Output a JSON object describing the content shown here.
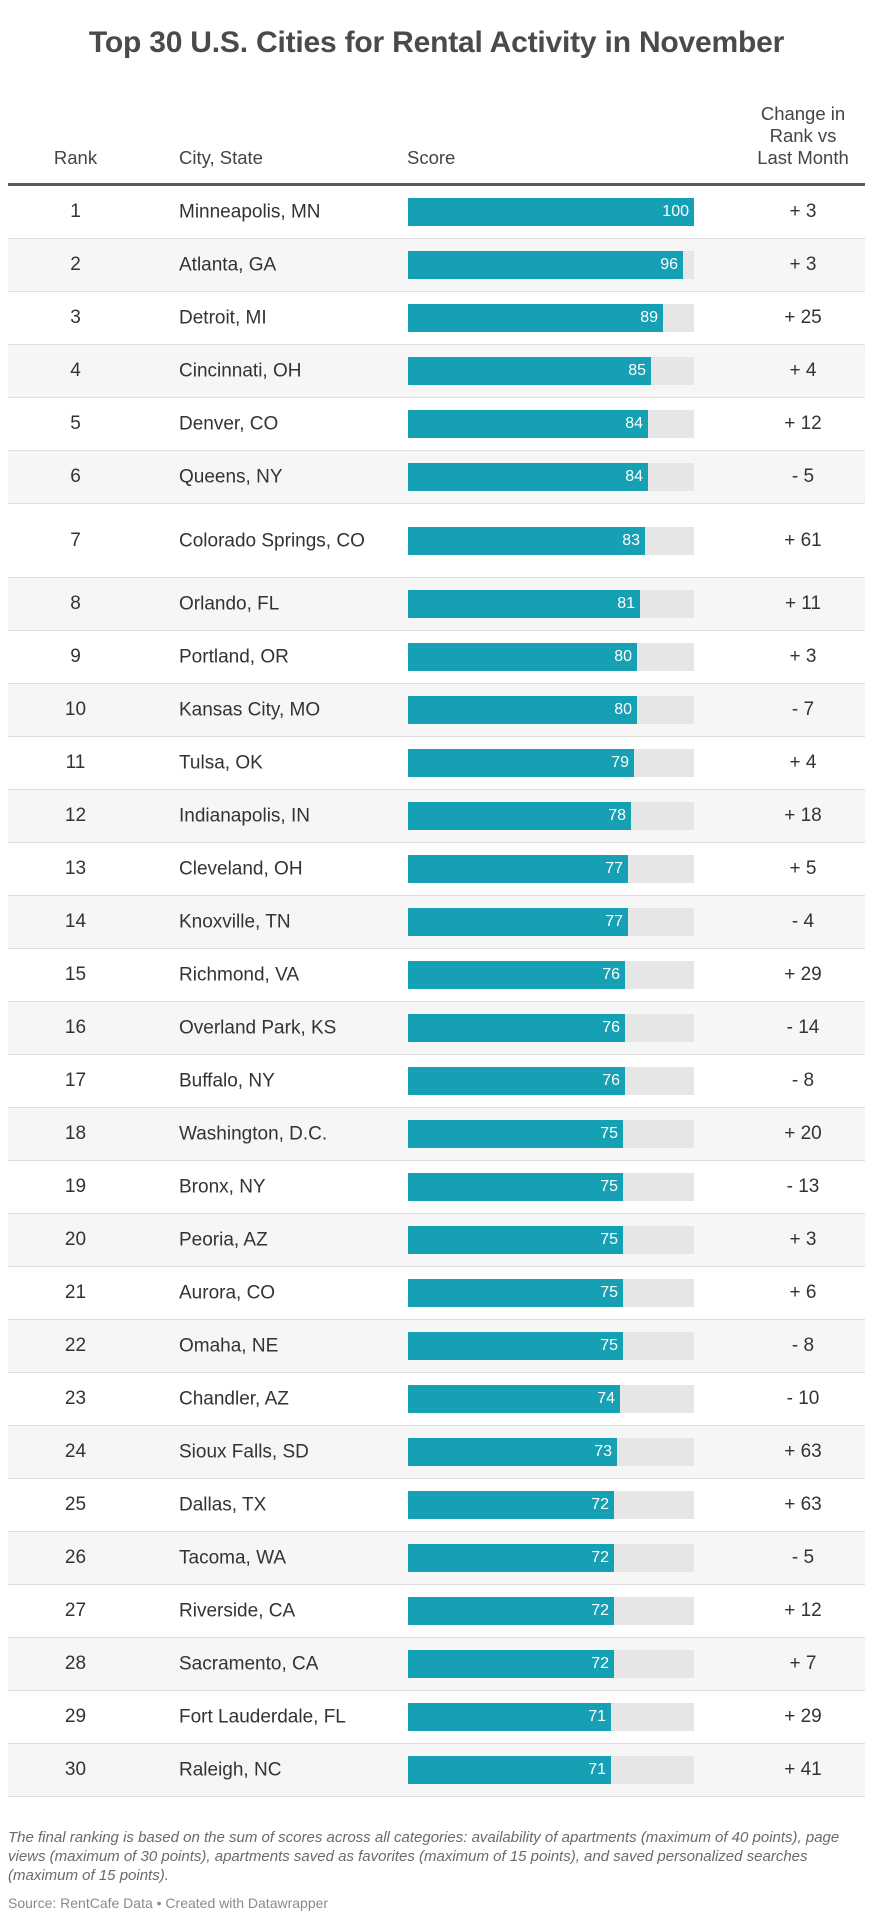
{
  "title": "Top 30 U.S. Cities for Rental Activity in November",
  "headers": {
    "rank": "Rank",
    "city": "City, State",
    "score": "Score",
    "change_line1": "Change in",
    "change_line2": "Rank vs",
    "change_line3": "Last Month"
  },
  "chart_data": {
    "type": "table",
    "title": "Top 30 U.S. Cities for Rental Activity in November",
    "columns": [
      "Rank",
      "City, State",
      "Score",
      "Change in Rank vs Last Month"
    ],
    "score_max": 100,
    "rows": [
      {
        "rank": "1",
        "city": "Minneapolis, MN",
        "score": 100,
        "change": "+ 3"
      },
      {
        "rank": "2",
        "city": "Atlanta, GA",
        "score": 96,
        "change": "+ 3"
      },
      {
        "rank": "3",
        "city": "Detroit, MI",
        "score": 89,
        "change": "+ 25"
      },
      {
        "rank": "4",
        "city": "Cincinnati, OH",
        "score": 85,
        "change": "+ 4"
      },
      {
        "rank": "5",
        "city": "Denver, CO",
        "score": 84,
        "change": "+ 12"
      },
      {
        "rank": "6",
        "city": "Queens, NY",
        "score": 84,
        "change": "- 5"
      },
      {
        "rank": "7",
        "city": "Colorado Springs, CO",
        "score": 83,
        "change": "+ 61"
      },
      {
        "rank": "8",
        "city": "Orlando, FL",
        "score": 81,
        "change": "+ 11"
      },
      {
        "rank": "9",
        "city": "Portland, OR",
        "score": 80,
        "change": "+ 3"
      },
      {
        "rank": "10",
        "city": "Kansas City, MO",
        "score": 80,
        "change": "- 7"
      },
      {
        "rank": "11",
        "city": "Tulsa, OK",
        "score": 79,
        "change": "+ 4"
      },
      {
        "rank": "12",
        "city": "Indianapolis, IN",
        "score": 78,
        "change": "+ 18"
      },
      {
        "rank": "13",
        "city": "Cleveland, OH",
        "score": 77,
        "change": "+ 5"
      },
      {
        "rank": "14",
        "city": "Knoxville, TN",
        "score": 77,
        "change": "- 4"
      },
      {
        "rank": "15",
        "city": "Richmond, VA",
        "score": 76,
        "change": "+ 29"
      },
      {
        "rank": "16",
        "city": "Overland Park, KS",
        "score": 76,
        "change": "- 14"
      },
      {
        "rank": "17",
        "city": "Buffalo, NY",
        "score": 76,
        "change": "- 8"
      },
      {
        "rank": "18",
        "city": "Washington, D.C.",
        "score": 75,
        "change": "+ 20"
      },
      {
        "rank": "19",
        "city": "Bronx, NY",
        "score": 75,
        "change": "- 13"
      },
      {
        "rank": "20",
        "city": "Peoria, AZ",
        "score": 75,
        "change": "+ 3"
      },
      {
        "rank": "21",
        "city": "Aurora, CO",
        "score": 75,
        "change": "+ 6"
      },
      {
        "rank": "22",
        "city": "Omaha, NE",
        "score": 75,
        "change": "- 8"
      },
      {
        "rank": "23",
        "city": "Chandler, AZ",
        "score": 74,
        "change": "- 10"
      },
      {
        "rank": "24",
        "city": "Sioux Falls, SD",
        "score": 73,
        "change": "+ 63"
      },
      {
        "rank": "25",
        "city": "Dallas, TX",
        "score": 72,
        "change": "+ 63"
      },
      {
        "rank": "26",
        "city": "Tacoma, WA",
        "score": 72,
        "change": "- 5"
      },
      {
        "rank": "27",
        "city": "Riverside, CA",
        "score": 72,
        "change": "+ 12"
      },
      {
        "rank": "28",
        "city": "Sacramento, CA",
        "score": 72,
        "change": "+ 7"
      },
      {
        "rank": "29",
        "city": "Fort Lauderdale, FL",
        "score": 71,
        "change": "+ 29"
      },
      {
        "rank": "30",
        "city": "Raleigh, NC",
        "score": 71,
        "change": "+ 41"
      }
    ]
  },
  "notes": "The final ranking is based on the sum of scores across all categories: availability of apartments (maximum of 40 points), page views (maximum of 30 points), apartments saved as favorites (maximum of 15 points), and saved personalized searches (maximum of 15 points).",
  "source": "Source: RentCafe Data • Created with Datawrapper",
  "colors": {
    "bar": "#15a0b3",
    "bar_track": "#e6e6e6",
    "row_alt": "#f6f6f6",
    "title": "#4a4a4a"
  }
}
